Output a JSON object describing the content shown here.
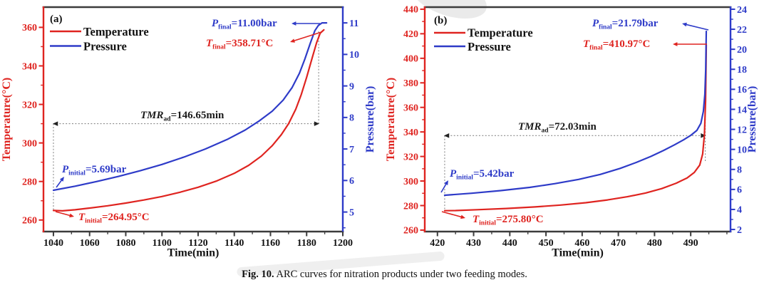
{
  "caption": {
    "prefix": "Fig. 10.",
    "text": " ARC curves for nitration products under two feeding modes."
  },
  "colors": {
    "temperature": "#df2420",
    "pressure": "#2e3bc8",
    "frame": "#3c3c3c",
    "text": "#111111",
    "dotted": "#8a8a8a",
    "arrow_black": "#222222"
  },
  "chart_data": [
    {
      "type": "line",
      "panel": "(a)",
      "xlabel": "Time(min)",
      "ylabel_left": "Temperature(°C)",
      "ylabel_right": "Pressure(bar)",
      "xlim": [
        1034.5,
        1200
      ],
      "x_ticks": [
        1040,
        1060,
        1080,
        1100,
        1120,
        1140,
        1160,
        1180,
        1200
      ],
      "x_minor_step": 10,
      "ylim_left": [
        254,
        370.5
      ],
      "y_ticks_left": [
        260,
        280,
        300,
        320,
        340,
        360
      ],
      "y_minor_left": 10,
      "ylim_right": [
        4.38,
        11.5
      ],
      "y_ticks_right": [
        5,
        6,
        7,
        8,
        9,
        10,
        11
      ],
      "y_minor_right": 0.5,
      "legend": [
        {
          "label": "Temperature",
          "color_key": "temperature"
        },
        {
          "label": "Pressure",
          "color_key": "pressure"
        }
      ],
      "series": [
        {
          "name": "Temperature",
          "axis": "left",
          "color_key": "temperature",
          "points": [
            [
              1040,
              264.95
            ],
            [
              1045,
              264.75
            ],
            [
              1052,
              265.3
            ],
            [
              1060,
              266.2
            ],
            [
              1070,
              267.4
            ],
            [
              1080,
              268.8
            ],
            [
              1090,
              270.4
            ],
            [
              1100,
              272.2
            ],
            [
              1110,
              274.4
            ],
            [
              1120,
              277.0
            ],
            [
              1130,
              280.2
            ],
            [
              1140,
              284.2
            ],
            [
              1148,
              288.4
            ],
            [
              1155,
              293.2
            ],
            [
              1161,
              298.6
            ],
            [
              1166,
              304.3
            ],
            [
              1170,
              310.0
            ],
            [
              1174,
              317.5
            ],
            [
              1177,
              325.0
            ],
            [
              1180,
              334.0
            ],
            [
              1183,
              344.0
            ],
            [
              1185.5,
              352.0
            ],
            [
              1187.5,
              357.0
            ],
            [
              1189.5,
              358.71
            ]
          ]
        },
        {
          "name": "Pressure",
          "axis": "right",
          "color_key": "pressure",
          "points": [
            [
              1040,
              5.69
            ],
            [
              1052,
              5.82
            ],
            [
              1064,
              5.97
            ],
            [
              1076,
              6.13
            ],
            [
              1088,
              6.31
            ],
            [
              1100,
              6.51
            ],
            [
              1112,
              6.74
            ],
            [
              1124,
              7.0
            ],
            [
              1136,
              7.3
            ],
            [
              1146,
              7.6
            ],
            [
              1154,
              7.9
            ],
            [
              1161,
              8.2
            ],
            [
              1167,
              8.55
            ],
            [
              1172,
              8.95
            ],
            [
              1176,
              9.4
            ],
            [
              1179,
              9.85
            ],
            [
              1182,
              10.35
            ],
            [
              1184.5,
              10.75
            ],
            [
              1186.5,
              10.92
            ],
            [
              1188.5,
              11.0
            ],
            [
              1191,
              11.0
            ]
          ]
        }
      ],
      "tmr": {
        "sym": "TMR",
        "sub": "ad",
        "rest": "=146.65min",
        "t_start": 1040,
        "t_end": 1186.65,
        "T_level": 310
      },
      "annotations": [
        {
          "id": "p_final",
          "sym": "P",
          "sub": "final",
          "rest": "=11.00bar",
          "color_key": "pressure"
        },
        {
          "id": "t_final",
          "sym": "T",
          "sub": "final",
          "rest": "=358.71°C",
          "color_key": "temperature"
        },
        {
          "id": "p_initial",
          "sym": "P",
          "sub": "initial",
          "rest": "=5.69bar",
          "color_key": "pressure"
        },
        {
          "id": "t_initial",
          "sym": "T",
          "sub": "initial",
          "rest": "=264.95°C",
          "color_key": "temperature"
        }
      ]
    },
    {
      "type": "line",
      "panel": "(b)",
      "xlabel": "Time(min)",
      "ylabel_left": "Temperature(°C)",
      "ylabel_right": "Pressure(bar)",
      "xlim": [
        416.5,
        501
      ],
      "x_ticks": [
        420,
        430,
        440,
        450,
        460,
        470,
        480,
        490
      ],
      "x_minor_step": 5,
      "ylim_left": [
        258.8,
        441.7
      ],
      "y_ticks_left": [
        260,
        280,
        300,
        320,
        340,
        360,
        380,
        400,
        420,
        440
      ],
      "y_minor_left": 10,
      "ylim_right": [
        1.79,
        24.21
      ],
      "y_ticks_right": [
        2,
        4,
        6,
        8,
        10,
        12,
        14,
        16,
        18,
        20,
        22,
        24
      ],
      "y_minor_right": 1,
      "legend": [
        {
          "label": "Temperature",
          "color_key": "temperature"
        },
        {
          "label": "Pressure",
          "color_key": "pressure"
        }
      ],
      "series": [
        {
          "name": "Temperature",
          "axis": "left",
          "color_key": "temperature",
          "points": [
            [
              422,
              275.8
            ],
            [
              425,
              275.9
            ],
            [
              431,
              276.6
            ],
            [
              439,
              277.6
            ],
            [
              447,
              278.9
            ],
            [
              454,
              280.4
            ],
            [
              461,
              282.3
            ],
            [
              467,
              284.6
            ],
            [
              472.5,
              287.2
            ],
            [
              477.5,
              290.2
            ],
            [
              482,
              293.8
            ],
            [
              486,
              298.2
            ],
            [
              489,
              302.5
            ],
            [
              491,
              307.0
            ],
            [
              492.5,
              313.0
            ],
            [
              493.3,
              322.0
            ],
            [
              493.8,
              338.0
            ],
            [
              494.1,
              365.0
            ],
            [
              494.25,
              395.0
            ],
            [
              494.3,
              410.97
            ]
          ]
        },
        {
          "name": "Pressure",
          "axis": "right",
          "color_key": "pressure",
          "points": [
            [
              422,
              5.42
            ],
            [
              429.5,
              5.62
            ],
            [
              437.5,
              5.88
            ],
            [
              445.5,
              6.2
            ],
            [
              452.5,
              6.58
            ],
            [
              459,
              7.0
            ],
            [
              465,
              7.5
            ],
            [
              470.5,
              8.1
            ],
            [
              475,
              8.7
            ],
            [
              479,
              9.3
            ],
            [
              482.5,
              9.9
            ],
            [
              485.5,
              10.45
            ],
            [
              488,
              10.95
            ],
            [
              490,
              11.4
            ],
            [
              491.7,
              11.9
            ],
            [
              492.8,
              12.6
            ],
            [
              493.5,
              13.8
            ],
            [
              493.9,
              15.5
            ],
            [
              494.15,
              18.0
            ],
            [
              494.3,
              21.79
            ]
          ]
        }
      ],
      "tmr": {
        "sym": "TMR",
        "sub": "ad",
        "rest": "=72.03min",
        "t_start": 422,
        "t_end": 494.03,
        "T_level": 337
      },
      "annotations": [
        {
          "id": "p_final",
          "sym": "P",
          "sub": "final",
          "rest": "=21.79bar",
          "color_key": "pressure"
        },
        {
          "id": "t_final",
          "sym": "T",
          "sub": "final",
          "rest": "=410.97°C",
          "color_key": "temperature"
        },
        {
          "id": "p_initial",
          "sym": "P",
          "sub": "initial",
          "rest": "=5.42bar",
          "color_key": "pressure"
        },
        {
          "id": "t_initial",
          "sym": "T",
          "sub": "initial",
          "rest": "=275.80°C",
          "color_key": "temperature"
        }
      ]
    }
  ]
}
